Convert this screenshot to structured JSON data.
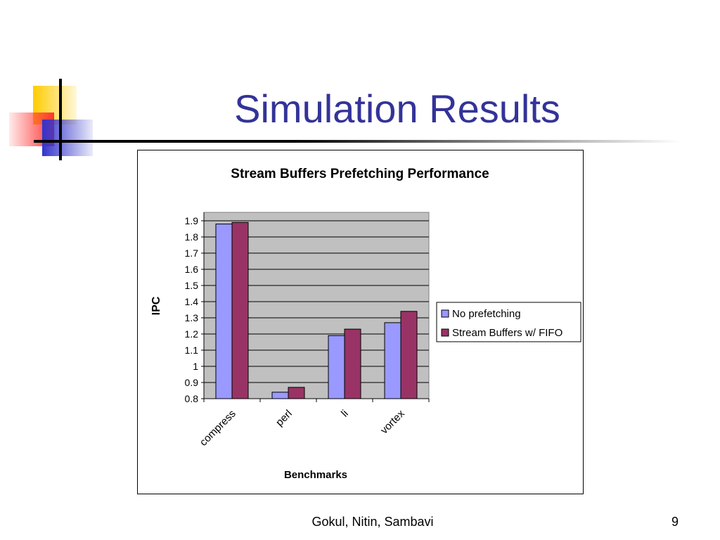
{
  "slide": {
    "title": "Simulation Results",
    "footer": "Gokul, Nitin, Sambavi",
    "page_number": "9"
  },
  "colors": {
    "title": "#333399",
    "deco_yellow": "#ffcc00",
    "deco_red": "#ff3333",
    "deco_blue": "#3333cc",
    "plot_bg": "#c0c0c0",
    "series_1": "#9999ff",
    "series_2": "#993366"
  },
  "chart_data": {
    "type": "bar",
    "title": "Stream Buffers Prefetching Performance",
    "xlabel": "Benchmarks",
    "ylabel": "IPC",
    "categories": [
      "compress",
      "perl",
      "li",
      "vortex"
    ],
    "series": [
      {
        "name": "No prefetching",
        "values": [
          1.88,
          0.84,
          1.19,
          1.27
        ]
      },
      {
        "name": "Stream Buffers w/ FIFO",
        "values": [
          1.89,
          0.87,
          1.23,
          1.34
        ]
      }
    ],
    "ylim": [
      0.8,
      1.9
    ],
    "yticks": [
      "0.8",
      "0.9",
      "1",
      "1.1",
      "1.2",
      "1.3",
      "1.4",
      "1.5",
      "1.6",
      "1.7",
      "1.8",
      "1.9"
    ],
    "grid": true,
    "legend_position": "right"
  }
}
